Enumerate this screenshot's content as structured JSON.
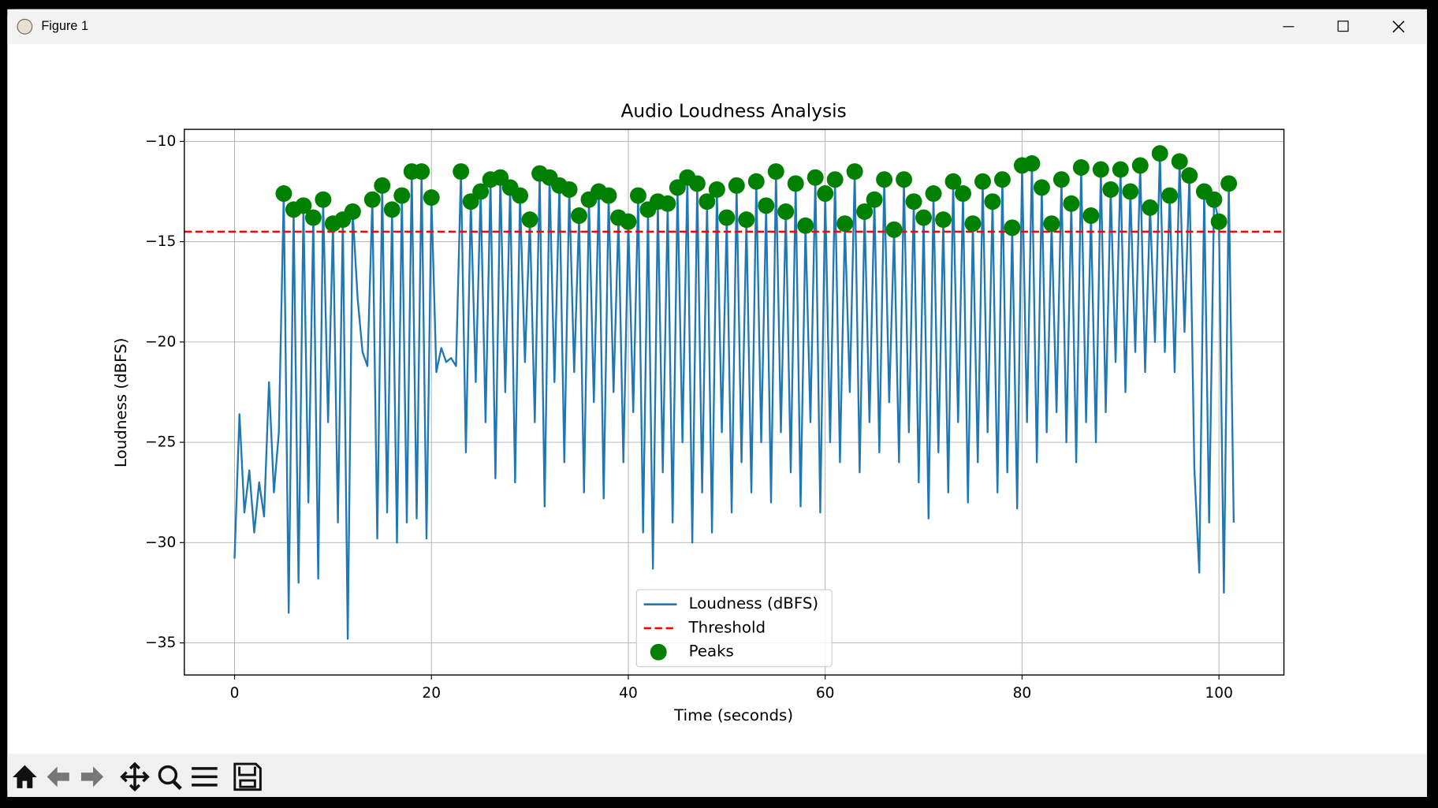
{
  "window": {
    "title": "Figure 1"
  },
  "chart_data": {
    "type": "line",
    "title": "Audio Loudness Analysis",
    "xlabel": "Time (seconds)",
    "ylabel": "Loudness (dBFS)",
    "xlim": [
      -5.1,
      106.6
    ],
    "ylim": [
      -36.6,
      -9.4
    ],
    "xticks": [
      0,
      20,
      40,
      60,
      80,
      100
    ],
    "yticks": [
      {
        "value": -35,
        "label": "−35"
      },
      {
        "value": -30,
        "label": "−30"
      },
      {
        "value": -25,
        "label": "−25"
      },
      {
        "value": -20,
        "label": "−20"
      },
      {
        "value": -15,
        "label": "−15"
      },
      {
        "value": -10,
        "label": "−10"
      }
    ],
    "grid": true,
    "legend": "lower center",
    "x": [
      0,
      0.5,
      1,
      1.5,
      2,
      2.5,
      3,
      3.5,
      4,
      4.5,
      5,
      5.5,
      6,
      6.5,
      7,
      7.5,
      8,
      8.5,
      9,
      9.5,
      10,
      10.5,
      11,
      11.5,
      12,
      12.5,
      13,
      13.5,
      14,
      14.5,
      15,
      15.5,
      16,
      16.5,
      17,
      17.5,
      18,
      18.5,
      19,
      19.5,
      20,
      20.5,
      21,
      21.5,
      22,
      22.5,
      23,
      23.5,
      24,
      24.5,
      25,
      25.5,
      26,
      26.5,
      27,
      27.5,
      28,
      28.5,
      29,
      29.5,
      30,
      30.5,
      31,
      31.5,
      32,
      32.5,
      33,
      33.5,
      34,
      34.5,
      35,
      35.5,
      36,
      36.5,
      37,
      37.5,
      38,
      38.5,
      39,
      39.5,
      40,
      40.5,
      41,
      41.5,
      42,
      42.5,
      43,
      43.5,
      44,
      44.5,
      45,
      45.5,
      46,
      46.5,
      47,
      47.5,
      48,
      48.5,
      49,
      49.5,
      50,
      50.5,
      51,
      51.5,
      52,
      52.5,
      53,
      53.5,
      54,
      54.5,
      55,
      55.5,
      56,
      56.5,
      57,
      57.5,
      58,
      58.5,
      59,
      59.5,
      60,
      60.5,
      61,
      61.5,
      62,
      62.5,
      63,
      63.5,
      64,
      64.5,
      65,
      65.5,
      66,
      66.5,
      67,
      67.5,
      68,
      68.5,
      69,
      69.5,
      70,
      70.5,
      71,
      71.5,
      72,
      72.5,
      73,
      73.5,
      74,
      74.5,
      75,
      75.5,
      76,
      76.5,
      77,
      77.5,
      78,
      78.5,
      79,
      79.5,
      80,
      80.5,
      81,
      81.5,
      82,
      82.5,
      83,
      83.5,
      84,
      84.5,
      85,
      85.5,
      86,
      86.5,
      87,
      87.5,
      88,
      88.5,
      89,
      89.5,
      90,
      90.5,
      91,
      91.5,
      92,
      92.5,
      93,
      93.5,
      94,
      94.5,
      95,
      95.5,
      96,
      96.5,
      97,
      97.5,
      98,
      98.5,
      99,
      99.5,
      100,
      100.5,
      101,
      101.5
    ],
    "series": [
      {
        "name": "Loudness (dBFS)",
        "color": "#1f77b4",
        "values": [
          -30.8,
          -23.6,
          -28.5,
          -26.4,
          -29.5,
          -27.0,
          -28.7,
          -22.0,
          -27.5,
          -24.5,
          -12.6,
          -33.5,
          -13.4,
          -32.0,
          -13.2,
          -28.0,
          -13.8,
          -31.8,
          -12.9,
          -24.0,
          -14.1,
          -29.0,
          -13.9,
          -34.8,
          -13.5,
          -17.8,
          -20.5,
          -21.2,
          -12.9,
          -29.8,
          -12.2,
          -28.5,
          -13.4,
          -30.0,
          -12.7,
          -29.0,
          -11.5,
          -28.8,
          -11.5,
          -29.8,
          -12.8,
          -21.5,
          -20.3,
          -21.0,
          -20.8,
          -21.2,
          -11.5,
          -25.5,
          -13.0,
          -22.0,
          -12.5,
          -24.0,
          -11.9,
          -26.8,
          -11.8,
          -22.5,
          -12.3,
          -27.0,
          -12.7,
          -21.0,
          -13.9,
          -24.0,
          -11.6,
          -28.2,
          -11.8,
          -22.0,
          -12.2,
          -26.0,
          -12.4,
          -21.5,
          -13.7,
          -27.5,
          -12.9,
          -23.0,
          -12.5,
          -27.8,
          -12.7,
          -22.5,
          -13.8,
          -26.0,
          -14.0,
          -23.5,
          -12.7,
          -29.5,
          -13.4,
          -31.3,
          -13.0,
          -26.5,
          -13.1,
          -29.0,
          -12.3,
          -25.0,
          -11.8,
          -30.0,
          -12.1,
          -27.5,
          -13.0,
          -29.5,
          -12.4,
          -24.5,
          -13.8,
          -28.5,
          -12.2,
          -26.0,
          -13.9,
          -27.5,
          -12.0,
          -25.0,
          -13.2,
          -28.0,
          -11.5,
          -24.5,
          -13.5,
          -26.5,
          -12.1,
          -28.2,
          -14.2,
          -24.0,
          -11.8,
          -28.5,
          -12.6,
          -25.0,
          -11.9,
          -26.0,
          -14.1,
          -22.5,
          -11.5,
          -26.5,
          -13.5,
          -24.0,
          -12.9,
          -25.5,
          -11.9,
          -23.0,
          -14.4,
          -26.0,
          -11.9,
          -24.5,
          -13.0,
          -27.0,
          -13.8,
          -28.8,
          -12.6,
          -25.5,
          -13.9,
          -27.5,
          -12.0,
          -24.0,
          -12.6,
          -28.0,
          -14.1,
          -26.0,
          -12.0,
          -24.5,
          -13.0,
          -27.5,
          -11.9,
          -26.5,
          -14.3,
          -28.3,
          -11.2,
          -24.0,
          -11.1,
          -26.0,
          -12.3,
          -24.5,
          -14.1,
          -23.5,
          -11.9,
          -25.0,
          -13.1,
          -26.0,
          -11.3,
          -24.0,
          -13.7,
          -25.0,
          -11.4,
          -23.5,
          -12.4,
          -21.0,
          -11.4,
          -22.5,
          -12.5,
          -20.5,
          -11.2,
          -21.5,
          -13.3,
          -20.0,
          -10.6,
          -20.5,
          -12.7,
          -21.5,
          -11.0,
          -19.5,
          -11.7,
          -26.3,
          -31.5,
          -12.5,
          -29.0,
          -12.9,
          -14.0,
          -32.5,
          -12.1,
          -29.0
        ]
      }
    ],
    "threshold": {
      "name": "Threshold",
      "value": -14.5,
      "color": "#ff0000"
    },
    "peaks": {
      "name": "Peaks",
      "color": "#008000",
      "x": [
        5,
        6,
        7,
        8,
        9,
        10,
        11,
        12,
        14,
        15,
        16,
        17,
        18,
        19,
        20,
        23,
        24,
        25,
        26,
        27,
        28,
        29,
        30,
        31,
        32,
        33,
        34,
        35,
        36,
        37,
        38,
        39,
        40,
        41,
        42,
        43,
        44,
        45,
        46,
        47,
        48,
        49,
        50,
        51,
        52,
        53,
        54,
        55,
        56,
        57,
        58,
        59,
        60,
        61,
        62,
        63,
        64,
        65,
        66,
        67,
        68,
        69,
        70,
        71,
        72,
        73,
        74,
        75,
        76,
        77,
        78,
        79,
        80,
        81,
        82,
        83,
        84,
        85,
        86,
        87,
        88,
        89,
        90,
        91,
        92,
        93,
        94,
        95,
        96,
        97,
        98.5,
        99.5,
        100,
        101
      ],
      "values": [
        -12.6,
        -13.4,
        -13.2,
        -13.8,
        -12.9,
        -14.1,
        -13.9,
        -13.5,
        -12.9,
        -12.2,
        -13.4,
        -12.7,
        -11.5,
        -11.5,
        -12.8,
        -11.5,
        -13.0,
        -12.5,
        -11.9,
        -11.8,
        -12.3,
        -12.7,
        -13.9,
        -11.6,
        -11.8,
        -12.2,
        -12.4,
        -13.7,
        -12.9,
        -12.5,
        -12.7,
        -13.8,
        -14.0,
        -12.7,
        -13.4,
        -13.0,
        -13.1,
        -12.3,
        -11.8,
        -12.1,
        -13.0,
        -12.4,
        -13.8,
        -12.2,
        -13.9,
        -12.0,
        -13.2,
        -11.5,
        -13.5,
        -12.1,
        -14.2,
        -11.8,
        -12.6,
        -11.9,
        -14.1,
        -11.5,
        -13.5,
        -12.9,
        -11.9,
        -14.4,
        -11.9,
        -13.0,
        -13.8,
        -12.6,
        -13.9,
        -12.0,
        -12.6,
        -14.1,
        -12.0,
        -13.0,
        -11.9,
        -14.3,
        -11.2,
        -11.1,
        -12.3,
        -14.1,
        -11.9,
        -13.1,
        -11.3,
        -13.7,
        -11.4,
        -12.4,
        -11.4,
        -12.5,
        -11.2,
        -13.3,
        -10.6,
        -12.7,
        -11.0,
        -11.7,
        -12.5,
        -12.9,
        -14.0,
        -12.1
      ]
    }
  }
}
